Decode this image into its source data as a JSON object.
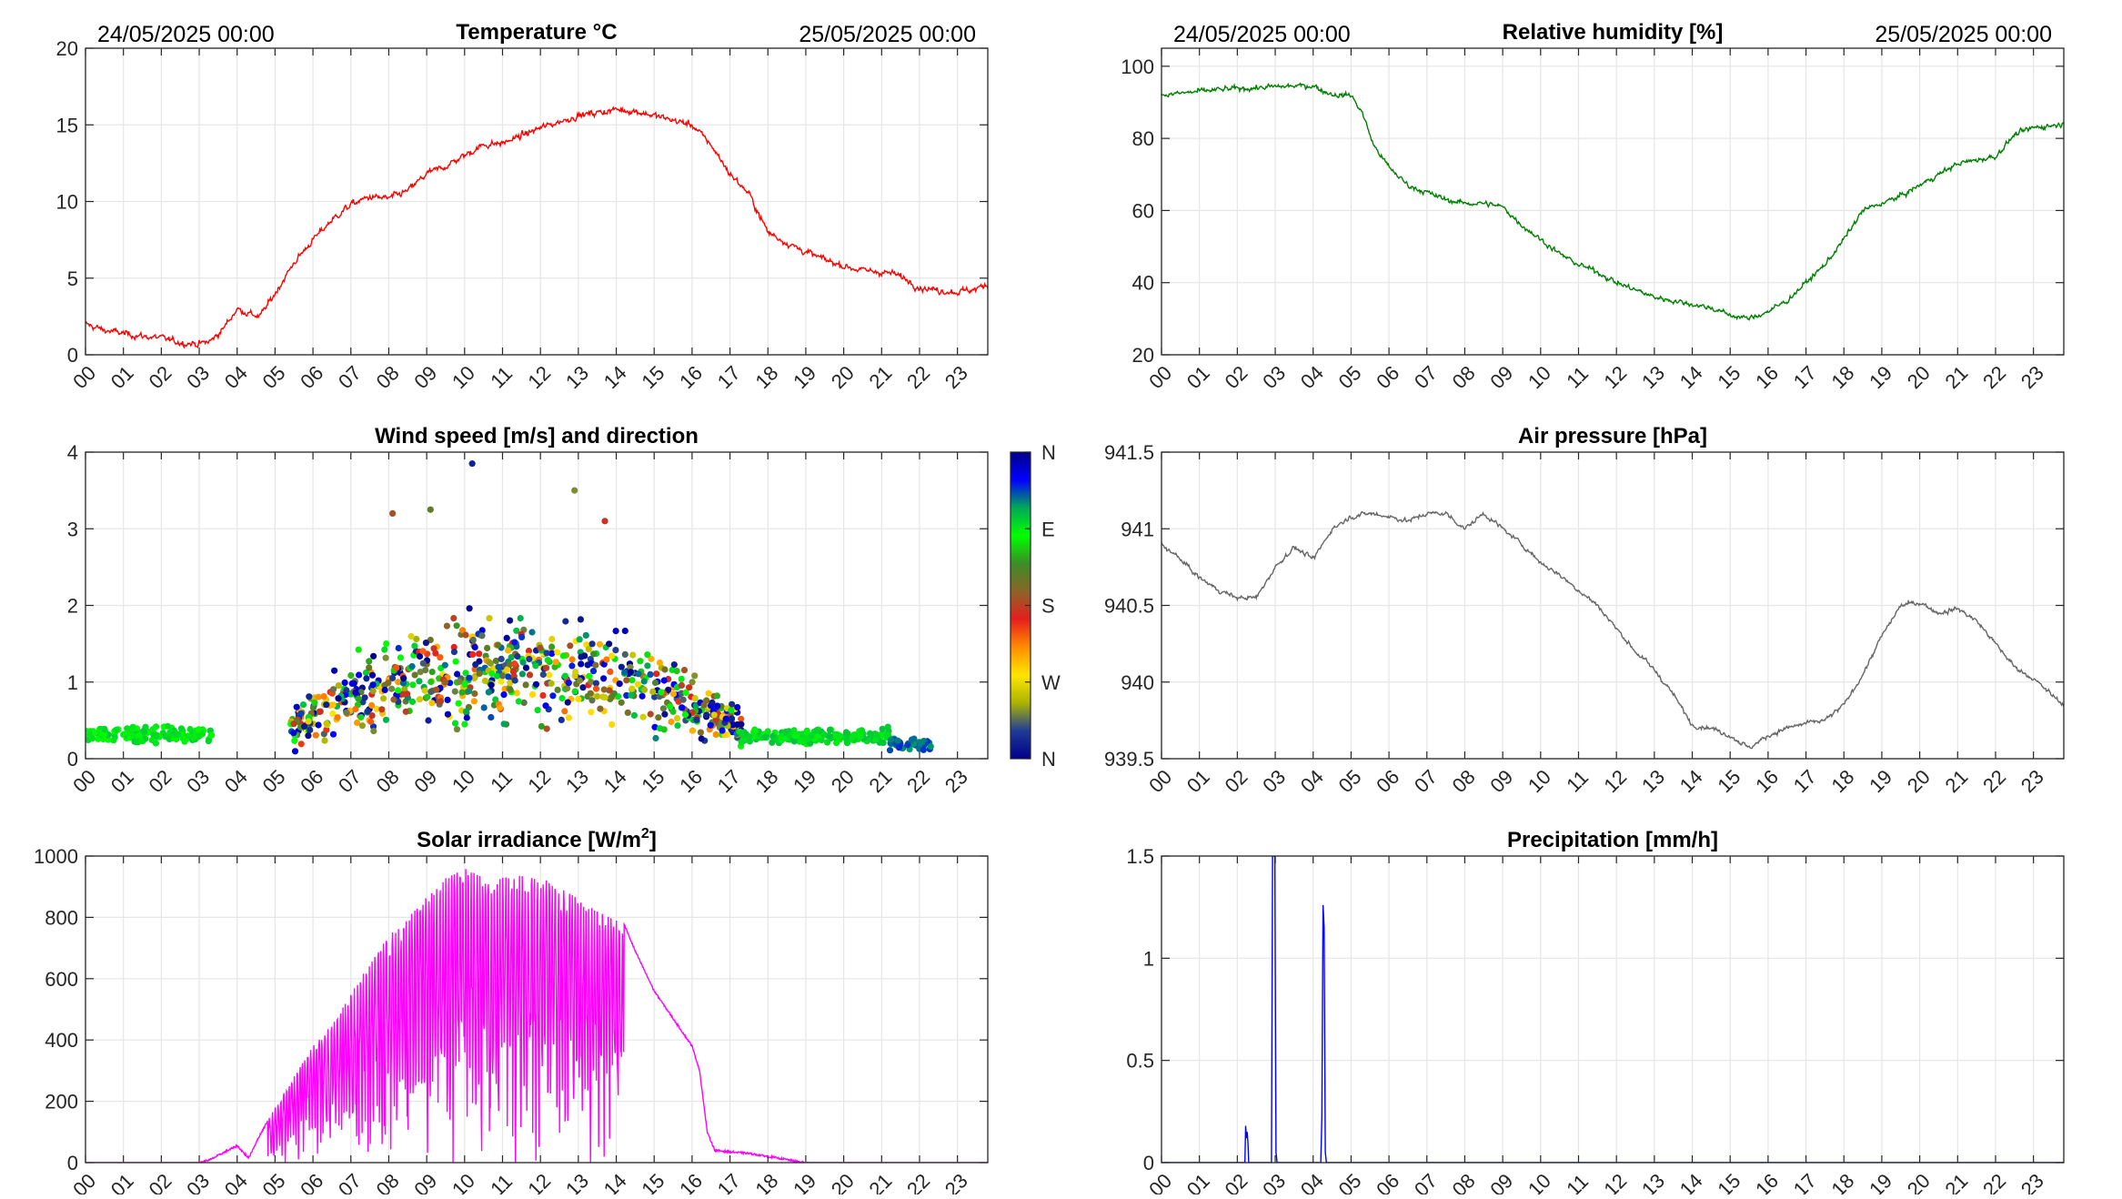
{
  "chart_data": [
    {
      "type": "line",
      "title": "Temperature °C",
      "date_left": "24/05/2025 00:00",
      "date_right": "25/05/2025 00:00",
      "ylim": [
        0,
        20
      ],
      "yticks": [
        "0",
        "5",
        "10",
        "15",
        "20"
      ],
      "xlim": [
        0,
        23.8
      ],
      "xtick_labels": [
        "00",
        "01",
        "02",
        "03",
        "04",
        "05",
        "06",
        "07",
        "08",
        "09",
        "10",
        "11",
        "12",
        "13",
        "14",
        "15",
        "16",
        "17",
        "18",
        "19",
        "20",
        "21",
        "22",
        "23"
      ],
      "grid": true,
      "color": "#ff0000",
      "noise": 0.35,
      "series": [
        {
          "x": [
            0,
            0.5,
            1,
            1.5,
            2,
            2.5,
            3,
            3.3,
            3.6,
            4,
            4.3,
            4.6,
            5,
            5.5,
            6,
            6.5,
            7,
            7.5,
            8,
            8.5,
            9,
            9.5,
            10,
            10.5,
            11,
            11.5,
            12,
            12.5,
            13,
            13.5,
            14,
            14.5,
            15,
            15.5,
            16,
            16.5,
            17,
            17.5,
            18,
            18.5,
            19,
            19.5,
            20,
            20.5,
            21,
            21.3,
            21.6,
            22,
            22.5,
            23,
            23.5,
            23.8
          ],
          "y": [
            2.0,
            1.6,
            1.4,
            1.2,
            1.1,
            0.8,
            0.7,
            0.9,
            1.6,
            3.0,
            2.7,
            2.5,
            4.0,
            6.0,
            7.5,
            8.8,
            9.8,
            10.3,
            10.2,
            10.7,
            11.8,
            12.3,
            13.0,
            13.7,
            13.8,
            14.3,
            14.8,
            15.2,
            15.6,
            15.8,
            16.0,
            15.9,
            15.6,
            15.3,
            15.0,
            13.7,
            11.8,
            10.5,
            8.0,
            7.3,
            6.7,
            6.2,
            5.8,
            5.5,
            5.4,
            5.3,
            5.0,
            4.4,
            4.2,
            4.1,
            4.3,
            4.6
          ]
        }
      ]
    },
    {
      "type": "line",
      "title": "Relative humidity [%]",
      "date_left": "24/05/2025 00:00",
      "date_right": "25/05/2025 00:00",
      "ylim": [
        20,
        105
      ],
      "yticks": [
        "20",
        "40",
        "60",
        "80",
        "100"
      ],
      "xlim": [
        0,
        23.8
      ],
      "xtick_labels": [
        "00",
        "01",
        "02",
        "03",
        "04",
        "05",
        "06",
        "07",
        "08",
        "09",
        "10",
        "11",
        "12",
        "13",
        "14",
        "15",
        "16",
        "17",
        "18",
        "19",
        "20",
        "21",
        "22",
        "23"
      ],
      "grid": true,
      "color": "#007f00",
      "noise": 1.2,
      "series": [
        {
          "x": [
            0,
            0.5,
            1,
            1.5,
            2,
            2.5,
            3,
            3.5,
            4,
            4.3,
            4.6,
            5,
            5.3,
            5.6,
            6,
            6.5,
            7,
            7.5,
            8,
            8.5,
            9,
            9.5,
            10,
            10.5,
            11,
            11.5,
            12,
            12.5,
            13,
            13.5,
            14,
            14.5,
            15,
            15.5,
            16,
            16.5,
            17,
            17.5,
            18,
            18.5,
            19,
            19.5,
            20,
            20.5,
            21,
            21.5,
            22,
            22.5,
            23,
            23.8
          ],
          "y": [
            92,
            92.5,
            93,
            93.5,
            93.8,
            94,
            94.3,
            94.5,
            94.6,
            93,
            92,
            92,
            87,
            78,
            72,
            67,
            65,
            63,
            62,
            62,
            61,
            56,
            52,
            48,
            45,
            43,
            40,
            38,
            36,
            35,
            34,
            33,
            31,
            30,
            32,
            35,
            40,
            45,
            52,
            60,
            62,
            64,
            67,
            70,
            73,
            74,
            75,
            81,
            83,
            84
          ]
        }
      ]
    },
    {
      "type": "scatter",
      "title": "Wind speed [m/s] and direction",
      "ylim": [
        0,
        4
      ],
      "yticks": [
        "0",
        "1",
        "2",
        "3",
        "4"
      ],
      "xlim": [
        0,
        23.8
      ],
      "xtick_labels": [
        "00",
        "01",
        "02",
        "03",
        "04",
        "05",
        "06",
        "07",
        "08",
        "09",
        "10",
        "11",
        "12",
        "13",
        "14",
        "15",
        "16",
        "17",
        "18",
        "19",
        "20",
        "21",
        "22",
        "23"
      ],
      "grid": true,
      "colorbar_labels": [
        "N",
        "W",
        "S",
        "E",
        "N"
      ],
      "colorbar_colors": [
        "#00008b",
        "#0000ff",
        "#00aa55",
        "#00ff00",
        "#3c8c28",
        "#8c6428",
        "#e61e1e",
        "#ff8c00",
        "#ffe600",
        "#aab400",
        "#1e3c96",
        "#00008b"
      ],
      "series": [
        {
          "x_range": [
            0,
            3.4
          ],
          "speed_mean": 0.32,
          "speed_spread": 0.08,
          "direction_range": [
            260,
            280
          ],
          "count": 150
        },
        {
          "x_range": [
            5.4,
            17.3
          ],
          "speed_mean": 1.2,
          "speed_spread": 0.55,
          "direction_range": [
            0,
            360
          ],
          "count": 750
        },
        {
          "x_range": [
            17.3,
            21.2
          ],
          "speed_mean": 0.3,
          "speed_spread": 0.08,
          "direction_range": [
            265,
            285
          ],
          "count": 180
        },
        {
          "x_range": [
            21.2,
            22.3
          ],
          "speed_mean": 0.18,
          "speed_spread": 0.07,
          "direction_range": [
            295,
            320
          ],
          "count": 40
        }
      ],
      "highlights": [
        {
          "x": 10.2,
          "y": 3.85
        },
        {
          "x": 12.9,
          "y": 3.5
        },
        {
          "x": 9.1,
          "y": 3.25
        },
        {
          "x": 13.7,
          "y": 3.1
        },
        {
          "x": 8.1,
          "y": 3.2
        }
      ]
    },
    {
      "type": "line",
      "title": "Air pressure [hPa]",
      "ylim": [
        939.5,
        941.5
      ],
      "yticks": [
        "939.5",
        "940",
        "940.5",
        "941",
        "941.5"
      ],
      "xlim": [
        0,
        23.8
      ],
      "xtick_labels": [
        "00",
        "01",
        "02",
        "03",
        "04",
        "05",
        "06",
        "07",
        "08",
        "09",
        "10",
        "11",
        "12",
        "13",
        "14",
        "15",
        "16",
        "17",
        "18",
        "19",
        "20",
        "21",
        "22",
        "23"
      ],
      "grid": true,
      "color": "#666666",
      "noise": 0.025,
      "series": [
        {
          "x": [
            0,
            0.5,
            1,
            1.5,
            2,
            2.5,
            3,
            3.5,
            4,
            4.5,
            5,
            5.5,
            6,
            6.5,
            7,
            7.5,
            8,
            8.5,
            9,
            9.5,
            10,
            10.5,
            11,
            11.5,
            12,
            12.5,
            13,
            13.5,
            14,
            14.5,
            15,
            15.5,
            16,
            16.5,
            17,
            17.5,
            18,
            18.5,
            19,
            19.5,
            20,
            20.5,
            21,
            21.5,
            22,
            22.5,
            23,
            23.8
          ],
          "y": [
            940.9,
            940.8,
            940.68,
            940.6,
            940.55,
            940.55,
            940.75,
            940.88,
            940.8,
            941.0,
            941.08,
            941.1,
            941.08,
            941.05,
            941.1,
            941.1,
            941.0,
            941.1,
            941.0,
            940.9,
            940.78,
            940.7,
            940.6,
            940.5,
            940.35,
            940.2,
            940.08,
            939.92,
            939.72,
            939.7,
            939.65,
            939.57,
            939.65,
            939.7,
            939.73,
            939.75,
            939.85,
            940.05,
            940.3,
            940.5,
            940.52,
            940.45,
            940.48,
            940.4,
            940.25,
            940.1,
            940.02,
            939.85
          ]
        }
      ]
    },
    {
      "type": "line",
      "title": "Solar irradiance [W/m2]",
      "ylim": [
        0,
        1000
      ],
      "yticks": [
        "0",
        "200",
        "400",
        "600",
        "800",
        "1000"
      ],
      "xlim": [
        0,
        23.8
      ],
      "xtick_labels": [
        "00",
        "01",
        "02",
        "03",
        "04",
        "05",
        "06",
        "07",
        "08",
        "09",
        "10",
        "11",
        "12",
        "13",
        "14",
        "15",
        "16",
        "17",
        "18",
        "19",
        "20",
        "21",
        "22",
        "23"
      ],
      "grid": true,
      "color": "#ff00ff",
      "noise": 0,
      "series": [
        {
          "envelope_x": [
            0,
            3,
            3.3,
            3.6,
            4,
            4.3,
            4.6,
            5,
            5.5,
            6,
            6.5,
            7,
            7.5,
            8,
            8.5,
            9,
            9.5,
            10,
            10.5,
            11,
            11.5,
            12,
            12.5,
            13,
            13.5,
            14,
            14.2,
            14.5,
            15,
            15.5,
            16,
            16.2,
            16.4,
            16.6,
            17,
            17.5,
            18,
            18.5,
            18.8,
            19,
            23.8
          ],
          "envelope_y": [
            0,
            0,
            10,
            30,
            55,
            15,
            90,
            180,
            280,
            380,
            450,
            550,
            650,
            740,
            800,
            870,
            930,
            960,
            930,
            930,
            940,
            930,
            900,
            860,
            820,
            790,
            780,
            690,
            560,
            470,
            380,
            300,
            100,
            40,
            35,
            30,
            20,
            10,
            2,
            0,
            0
          ],
          "cloud_dips": [
            [
              4.8,
              14.2,
              0.55
            ]
          ]
        }
      ]
    },
    {
      "type": "line",
      "title": "Precipitation [mm/h]",
      "ylim": [
        0,
        1.5
      ],
      "yticks": [
        "0",
        "0.5",
        "1",
        "1.5"
      ],
      "xlim": [
        0,
        23.8
      ],
      "xtick_labels": [
        "00",
        "01",
        "02",
        "03",
        "04",
        "05",
        "06",
        "07",
        "08",
        "09",
        "10",
        "11",
        "12",
        "13",
        "14",
        "15",
        "16",
        "17",
        "18",
        "19",
        "20",
        "21",
        "22",
        "23"
      ],
      "grid": true,
      "color": "#0000ff",
      "noise": 0,
      "series": [
        {
          "x": [
            0,
            2.2,
            2.22,
            2.24,
            2.26,
            2.28,
            2.3,
            2.32,
            2.9,
            2.93,
            2.96,
            2.99,
            3.02,
            3.05,
            4.2,
            4.23,
            4.26,
            4.29,
            4.32,
            4.35,
            23.8
          ],
          "y": [
            0,
            0,
            0.18,
            0.12,
            0.15,
            0.1,
            0,
            0,
            0,
            1.5,
            1.5,
            1.5,
            0.05,
            0,
            0,
            0.22,
            1.26,
            1.15,
            0.05,
            0,
            0
          ]
        }
      ]
    }
  ]
}
